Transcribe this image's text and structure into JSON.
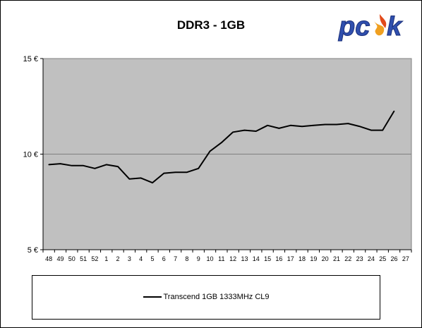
{
  "chart_data": {
    "type": "line",
    "title": "DDR3 - 1GB",
    "xlabel": "",
    "ylabel": "",
    "categories": [
      "48",
      "49",
      "50",
      "51",
      "52",
      "1",
      "2",
      "3",
      "4",
      "5",
      "6",
      "7",
      "8",
      "9",
      "10",
      "11",
      "12",
      "13",
      "14",
      "15",
      "16",
      "17",
      "18",
      "19",
      "20",
      "21",
      "22",
      "23",
      "24",
      "25",
      "26",
      "27"
    ],
    "series": [
      {
        "name": "Transcend 1GB 1333MHz CL9",
        "values": [
          9.45,
          9.5,
          9.4,
          9.4,
          9.25,
          9.45,
          9.35,
          8.7,
          8.75,
          8.5,
          9.0,
          9.05,
          9.05,
          9.25,
          10.15,
          10.6,
          11.15,
          11.25,
          11.2,
          11.5,
          11.35,
          11.5,
          11.45,
          11.5,
          11.55,
          11.55,
          11.6,
          11.45,
          11.25,
          11.25,
          12.25,
          null
        ],
        "color": "#000000"
      }
    ],
    "ylim": [
      5,
      15
    ],
    "yticks": [
      "5 €",
      "10 €",
      "15 €"
    ],
    "ytick_values": [
      5,
      10,
      15
    ],
    "grid": "horizontal",
    "plot_background": "#c0c0c0",
    "legend_position": "bottom"
  },
  "logo": {
    "text": "pcsk"
  }
}
